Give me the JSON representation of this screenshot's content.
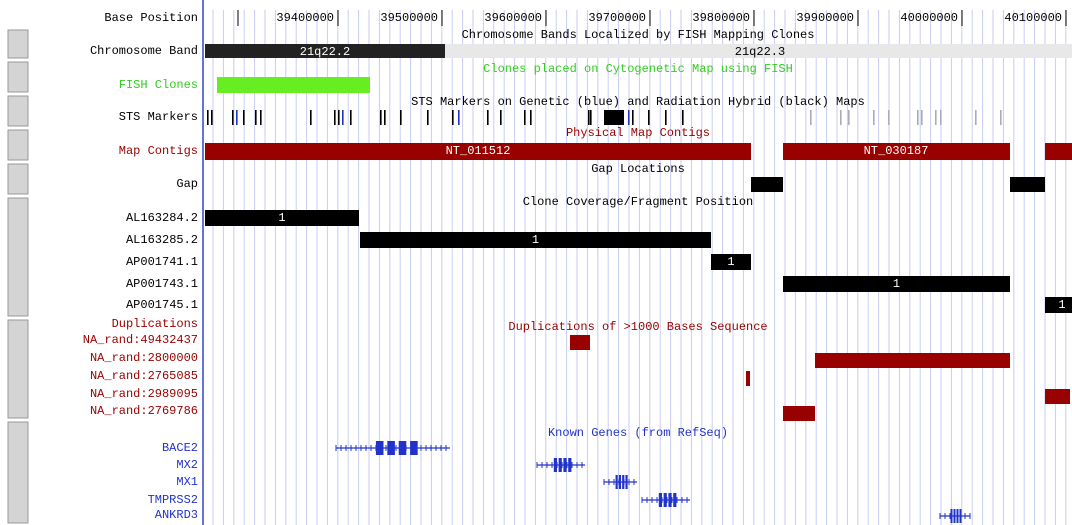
{
  "base_position": {
    "label": "Base Position",
    "ticks": [
      "39400000",
      "39500000",
      "39600000",
      "39700000",
      "39800000",
      "39900000",
      "40000000",
      "40100000"
    ]
  },
  "tracks": [
    {
      "label": "Chromosome Band",
      "title": "Chromosome Bands Localized by FISH Mapping Clones",
      "features": [
        "21q22.2",
        "21q22.3"
      ]
    },
    {
      "label": "FISH Clones",
      "title": "Clones placed on Cytogenetic Map using FISH"
    },
    {
      "label": "STS Markers",
      "title": "STS Markers on Genetic (blue) and Radiation Hybrid (black) Maps"
    },
    {
      "label": "Map Contigs",
      "title": "Physical Map Contigs",
      "features": [
        "NT_011512",
        "NT_030187"
      ]
    },
    {
      "label": "Gap",
      "title": "Gap Locations"
    },
    {
      "title": "Clone Coverage/Fragment Position",
      "rows": [
        {
          "label": "AL163284.2",
          "feature": "1"
        },
        {
          "label": "AL163285.2",
          "feature": "1"
        },
        {
          "label": "AP001741.1",
          "feature": "1"
        },
        {
          "label": "AP001743.1",
          "feature": "1"
        },
        {
          "label": "AP001745.1",
          "feature": "1"
        }
      ]
    },
    {
      "label": "Duplications",
      "title": "Duplications of >1000 Bases Sequence",
      "rows": [
        "NA_rand:49432437",
        "NA_rand:2800000",
        "NA_rand:2765085",
        "NA_rand:2989095",
        "NA_rand:2769786"
      ]
    },
    {
      "title": "Known Genes (from RefSeq)",
      "rows": [
        "BACE2",
        "MX2",
        "MX1",
        "TMPRSS2",
        "ANKRD3"
      ]
    }
  ]
}
